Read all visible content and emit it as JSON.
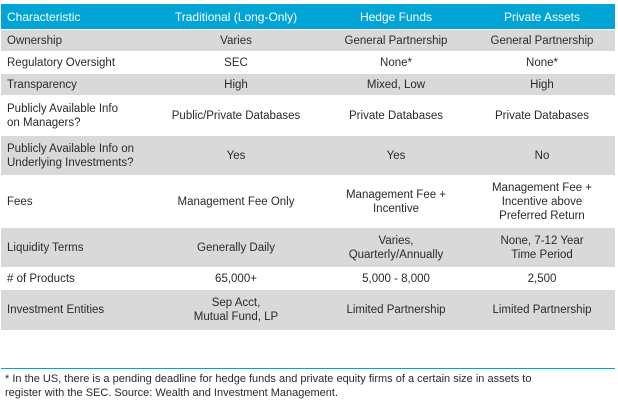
{
  "table": {
    "headers": [
      "Characteristic",
      "Traditional (Long-Only)",
      "Hedge Funds",
      "Private Assets"
    ],
    "rows": [
      {
        "shade": "alt",
        "height": 22,
        "cells": [
          [
            "Ownership"
          ],
          [
            "Varies"
          ],
          [
            "General Partnership"
          ],
          [
            "General Partnership"
          ]
        ]
      },
      {
        "shade": "plain",
        "height": 22,
        "cells": [
          [
            "Regulatory Oversight"
          ],
          [
            "SEC"
          ],
          [
            "None*"
          ],
          [
            "None*"
          ]
        ]
      },
      {
        "shade": "alt",
        "height": 22,
        "cells": [
          [
            "Transparency"
          ],
          [
            "High"
          ],
          [
            "Mixed, Low"
          ],
          [
            "High"
          ]
        ]
      },
      {
        "shade": "plain",
        "height": 40,
        "cells": [
          [
            "Publicly Available Info",
            "on Managers?"
          ],
          [
            "Public/Private Databases"
          ],
          [
            "Private Databases"
          ],
          [
            "Private Databases"
          ]
        ]
      },
      {
        "shade": "alt",
        "height": 40,
        "cells": [
          [
            "Publicly Available Info on",
            "Underlying Investments?"
          ],
          [
            "Yes"
          ],
          [
            "Yes"
          ],
          [
            "No"
          ]
        ]
      },
      {
        "shade": "plain",
        "height": 52,
        "cells": [
          [
            "Fees"
          ],
          [
            "Management Fee Only"
          ],
          [
            "Management Fee +",
            "Incentive"
          ],
          [
            "Management Fee +",
            "Incentive above",
            "Preferred Return"
          ]
        ]
      },
      {
        "shade": "alt",
        "height": 40,
        "cells": [
          [
            "Liquidity Terms"
          ],
          [
            "Generally Daily"
          ],
          [
            "Varies,",
            "Quarterly/Annually"
          ],
          [
            "None, 7-12 Year",
            "Time Period"
          ]
        ]
      },
      {
        "shade": "plain",
        "height": 22,
        "cells": [
          [
            "# of Products"
          ],
          [
            "65,000+"
          ],
          [
            "5,000 - 8,000"
          ],
          [
            "2,500"
          ]
        ]
      },
      {
        "shade": "alt",
        "height": 40,
        "cells": [
          [
            "Investment Entities"
          ],
          [
            "Sep Acct,",
            "Mutual Fund, LP"
          ],
          [
            "Limited Partnership"
          ],
          [
            "Limited Partnership"
          ]
        ]
      }
    ]
  },
  "footnote": {
    "line1": "* In the US, there is a pending deadline for hedge funds and private equity firms of a certain size in assets to",
    "line2": "register with the SEC.  Source: Wealth and Investment Management."
  },
  "colors": {
    "header_bg": "#00a5d6",
    "alt_row_bg": "#d9d9d9"
  }
}
